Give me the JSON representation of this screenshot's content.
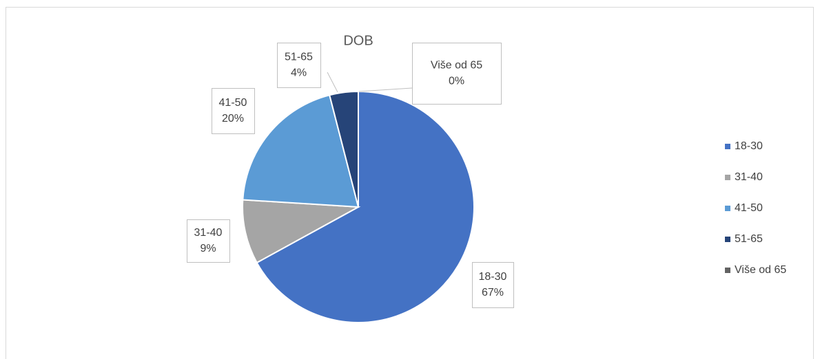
{
  "chart_data": {
    "type": "pie",
    "title": "DOB",
    "categories": [
      "18-30",
      "31-40",
      "41-50",
      "51-65",
      "Više od 65"
    ],
    "values": [
      67,
      9,
      20,
      4,
      0
    ],
    "value_labels": [
      "67%",
      "9%",
      "20%",
      "4%",
      "0%"
    ],
    "colors": [
      "#4472c4",
      "#a5a5a5",
      "#5b9bd5",
      "#264478",
      "#636363"
    ],
    "legend": "right"
  }
}
